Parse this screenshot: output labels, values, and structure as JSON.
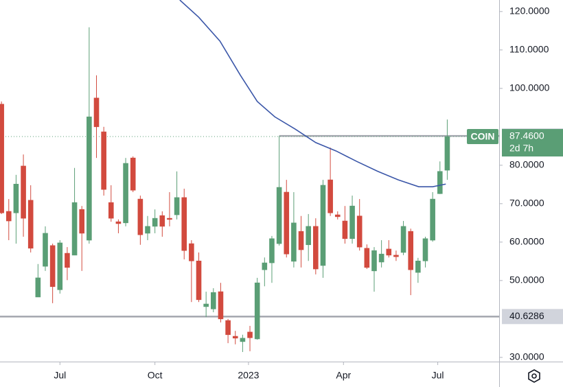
{
  "chart_data": {
    "type": "candlestick",
    "name": "COIN",
    "up_color": "#5a9e75",
    "down_color": "#d24a3e",
    "xlim": [
      -0.2,
      68.1
    ],
    "xticks": [
      {
        "value": 8,
        "label": "Jul"
      },
      {
        "value": 21,
        "label": "Oct"
      },
      {
        "value": 33.8,
        "label": "2023"
      },
      {
        "value": 46.8,
        "label": "Apr"
      },
      {
        "value": 59.7,
        "label": "Jul"
      }
    ],
    "ylim": [
      28.9,
      123.0
    ],
    "yticks": [
      {
        "value": 120,
        "label": "120.0000"
      },
      {
        "value": 110,
        "label": "110.0000"
      },
      {
        "value": 100,
        "label": "100.0000"
      },
      {
        "value": 80,
        "label": "80.0000"
      },
      {
        "value": 70,
        "label": "70.0000"
      },
      {
        "value": 60,
        "label": "60.0000"
      },
      {
        "value": 50,
        "label": "50.0000"
      },
      {
        "value": 30,
        "label": "30.0000"
      }
    ],
    "open": [
      95.9,
      68.0,
      67.6,
      79.8,
      70.9,
      45.7,
      53.7,
      59.1,
      47.6,
      57.1,
      56.6,
      68.5,
      60.5,
      97.5,
      88.7,
      70.3,
      65.3,
      65.0,
      81.9,
      71.2,
      62.3,
      64.1,
      66.9,
      66.2,
      67.1,
      71.6,
      59.6,
      55.1,
      43.2,
      42.6,
      47.1,
      39.6,
      35.5,
      34.1,
      36.6,
      34.8,
      52.8,
      54.6,
      59.6,
      73.0,
      55.0,
      62.8,
      59.3,
      64.1,
      53.9,
      76.2,
      67.1,
      65.5,
      60.9,
      66.8,
      58.4,
      52.5,
      54.8,
      58.2,
      56.6,
      57.3,
      62.8,
      52.1,
      55.1,
      60.5,
      72.6,
      78.7
    ],
    "high": [
      96.6,
      71.2,
      77.5,
      82.8,
      74.8,
      54.3,
      64.1,
      59.6,
      60.5,
      58.7,
      79.3,
      69.4,
      115.9,
      103.4,
      90.0,
      74.8,
      65.9,
      81.9,
      82.3,
      72.1,
      66.8,
      68.5,
      68.0,
      73.0,
      78.4,
      73.9,
      60.5,
      57.3,
      47.1,
      48.0,
      49.4,
      40.0,
      36.9,
      35.9,
      38.2,
      50.7,
      56.0,
      61.6,
      87.6,
      76.2,
      73.0,
      66.8,
      67.3,
      66.2,
      76.2,
      84.6,
      68.0,
      69.4,
      72.1,
      71.2,
      59.4,
      58.7,
      60.5,
      60.5,
      57.8,
      65.5,
      63.5,
      55.9,
      61.4,
      73.0,
      81.0,
      91.9
    ],
    "low": [
      67.3,
      60.5,
      59.6,
      61.4,
      57.3,
      45.7,
      52.5,
      44.1,
      46.6,
      50.1,
      56.6,
      52.5,
      59.6,
      81.9,
      72.1,
      65.3,
      62.3,
      64.1,
      73.0,
      59.3,
      60.5,
      62.3,
      61.4,
      64.1,
      65.9,
      55.5,
      44.4,
      44.4,
      40.5,
      41.75,
      39.1,
      33.7,
      33.4,
      31.4,
      31.6,
      34.6,
      48.5,
      49.4,
      59.1,
      56.0,
      53.4,
      53.4,
      55.1,
      51.6,
      50.7,
      66.8,
      65.9,
      59.6,
      59.6,
      57.8,
      53.0,
      47.1,
      53.4,
      56.0,
      55.1,
      56.6,
      46.2,
      49.4,
      53.4,
      60.1,
      72.5,
      76.2
    ],
    "close": [
      67.6,
      65.5,
      75.1,
      66.2,
      58.4,
      50.7,
      62.3,
      48.4,
      59.8,
      53.4,
      70.3,
      62.3,
      92.6,
      90.0,
      73.7,
      66.2,
      64.8,
      80.5,
      73.5,
      61.9,
      64.1,
      66.2,
      64.1,
      65.9,
      71.6,
      57.8,
      55.1,
      45.0,
      43.9,
      46.9,
      40.0,
      35.9,
      35.0,
      35.0,
      35.1,
      49.4,
      54.6,
      60.9,
      74.25,
      56.9,
      65.0,
      58.0,
      64.1,
      53.0,
      74.8,
      67.6,
      66.6,
      60.9,
      69.4,
      58.7,
      53.4,
      57.8,
      56.9,
      56.6,
      56.2,
      64.1,
      52.8,
      55.1,
      60.9,
      71.2,
      78.4,
      87.46
    ],
    "ma": {
      "color": "#3a56a8",
      "x": [
        24.4,
        27.0,
        29.9,
        32.7,
        35.0,
        37.4,
        40.2,
        43.0,
        45.8,
        48.6,
        51.5,
        54.3,
        57.1,
        59.0,
        60.8
      ],
      "values": [
        123.0,
        118.5,
        112.3,
        103.4,
        96.6,
        92.6,
        89.4,
        85.9,
        83.7,
        81.0,
        78.4,
        76.2,
        74.4,
        74.4,
        75.1
      ]
    },
    "levels": [
      {
        "value": 87.63,
        "label": "87.6300",
        "x_start": 38,
        "color": "#a3a6ae"
      },
      {
        "value": 40.6286,
        "label": "40.6286",
        "x_start": -0.2,
        "color": "#a3a6ae"
      }
    ],
    "last_price": {
      "value": 87.46,
      "label": "87.4600",
      "countdown": "2d 7h",
      "color": "#5a9e75"
    }
  }
}
